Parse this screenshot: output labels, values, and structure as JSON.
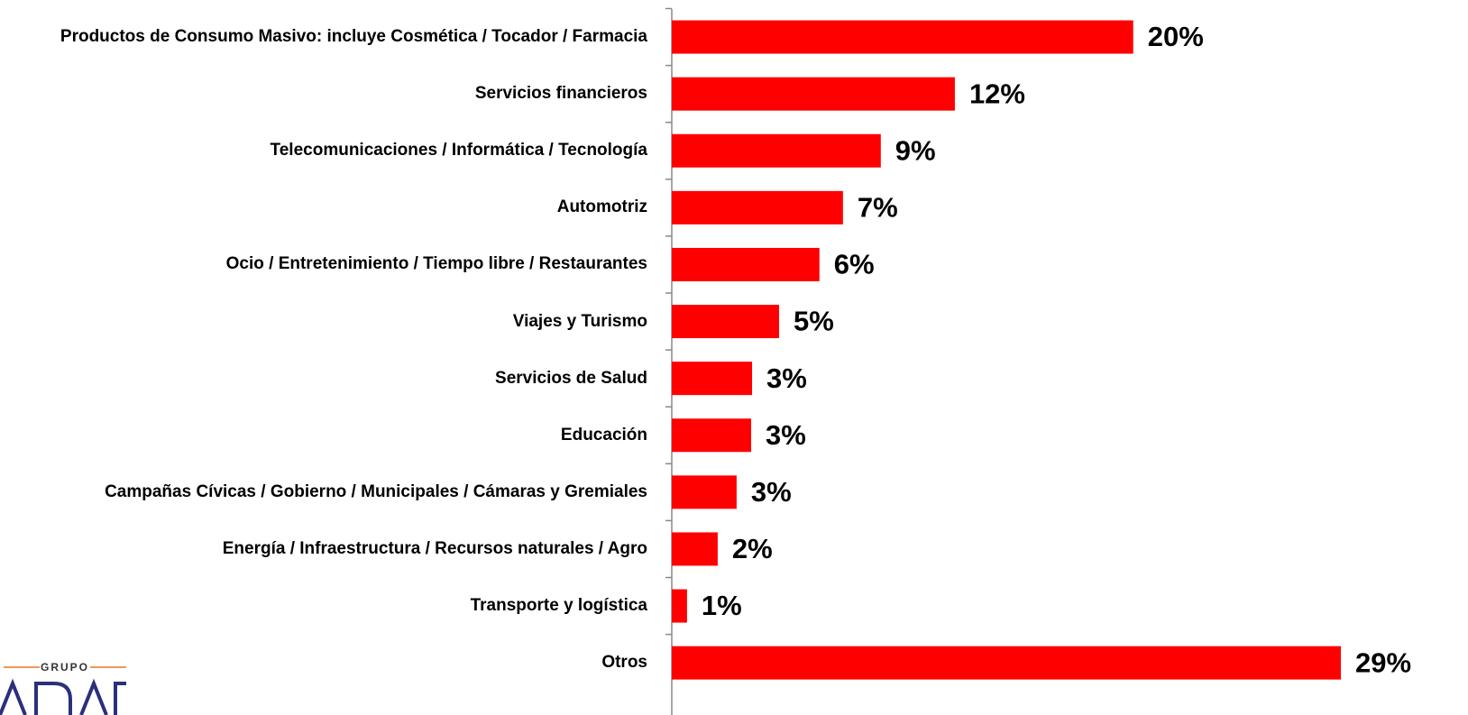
{
  "chart_data": {
    "type": "bar",
    "orientation": "horizontal",
    "color": "#ff0000",
    "categories": [
      "Productos de Consumo Masivo: incluye Cosmética / Tocador / Farmacia",
      "Servicios financieros",
      "Telecomunicaciones / Informática / Tecnología",
      "Automotriz",
      "Ocio / Entretenimiento / Tiempo libre / Restaurantes",
      "Viajes y Turismo",
      "Servicios de Salud",
      "Educación",
      "Campañas Cívicas / Gobierno / Municipales / Cámaras y Gremiales",
      "Energía / Infraestructura / Recursos naturales / Agro",
      "Transporte y logística",
      "Otros"
    ],
    "values": [
      20,
      12.27,
      9.06,
      7.42,
      6.4,
      4.65,
      3.48,
      3.44,
      2.81,
      1.99,
      0.66,
      29
    ],
    "value_labels": [
      "20%",
      "12%",
      "9%",
      "7%",
      "6%",
      "5%",
      "3%",
      "3%",
      "3%",
      "2%",
      "1%",
      "29%"
    ]
  },
  "logo": "GRUPO"
}
